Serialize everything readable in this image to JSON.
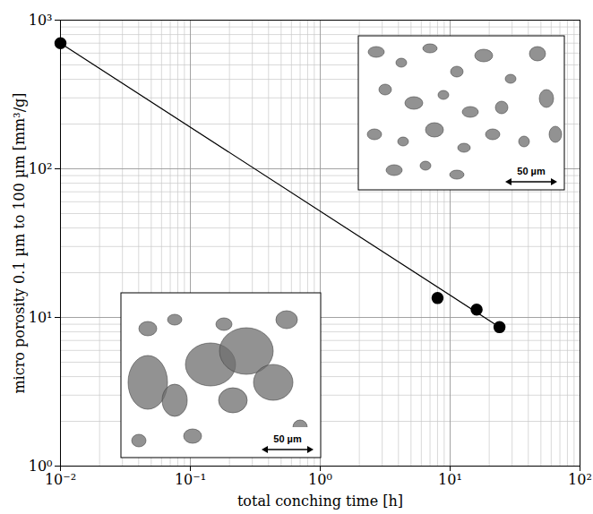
{
  "chart_data": {
    "type": "scatter",
    "x_label": "total conching time [h]",
    "y_label": "micro porosity 0.1 µm to 100 µm [mm³/g]",
    "log": true,
    "grid": true,
    "xlim": [
      0.01,
      100
    ],
    "ylim": [
      1,
      1000
    ],
    "xticks": [
      {
        "value": 0.01,
        "label": "10⁻²"
      },
      {
        "value": 0.1,
        "label": "10⁻¹"
      },
      {
        "value": 1,
        "label": "10⁰"
      },
      {
        "value": 10,
        "label": "10¹"
      },
      {
        "value": 100,
        "label": "10²"
      }
    ],
    "yticks": [
      {
        "value": 1,
        "label": "10⁰"
      },
      {
        "value": 10,
        "label": "10¹"
      },
      {
        "value": 100,
        "label": "10²"
      },
      {
        "value": 1000,
        "label": "10³"
      }
    ],
    "series": [
      {
        "type": "scatter",
        "x": [
          0.01,
          8,
          16,
          24
        ],
        "values": [
          700,
          13.5,
          11.3,
          8.6
        ],
        "color": "#000000",
        "marker": "circle"
      },
      {
        "type": "line",
        "x": [
          0.01,
          25
        ],
        "values": [
          700,
          8.4
        ],
        "color": "#000000",
        "line_style": "solid"
      }
    ],
    "annotations": [
      "50 µm",
      "50 µm"
    ]
  }
}
